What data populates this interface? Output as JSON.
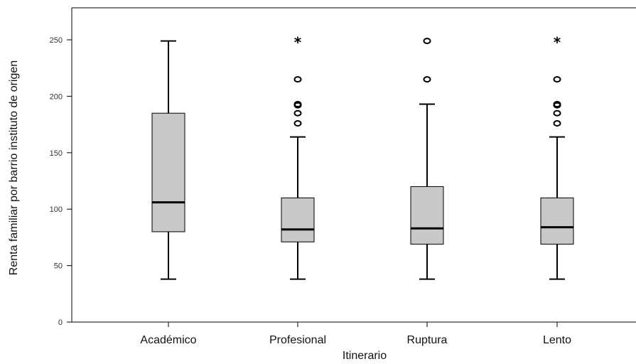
{
  "chart_data": {
    "type": "boxplot",
    "xlabel": "Itinerario",
    "ylabel": "Renta familiar por barrio instituto de origen",
    "ylim": [
      0,
      250
    ],
    "yticks": [
      0,
      50,
      100,
      150,
      200,
      250
    ],
    "categories": [
      "Académico",
      "Profesional",
      "Ruptura",
      "Lento"
    ],
    "boxes": [
      {
        "min": 38,
        "q1": 80,
        "median": 106,
        "q3": 185,
        "max": 249,
        "outliers": [],
        "extremes": []
      },
      {
        "min": 38,
        "q1": 71,
        "median": 82,
        "q3": 110,
        "max": 164,
        "outliers": [
          176,
          185,
          192,
          193,
          215
        ],
        "extremes": [
          249
        ]
      },
      {
        "min": 38,
        "q1": 69,
        "median": 83,
        "q3": 120,
        "max": 193,
        "outliers": [
          215,
          249
        ],
        "extremes": []
      },
      {
        "min": 38,
        "q1": 69,
        "median": 84,
        "q3": 110,
        "max": 164,
        "outliers": [
          176,
          185,
          192,
          193,
          215
        ],
        "extremes": [
          249
        ]
      }
    ],
    "grid": false,
    "box_color": "#c8c8c8",
    "line_color": "#000000"
  }
}
